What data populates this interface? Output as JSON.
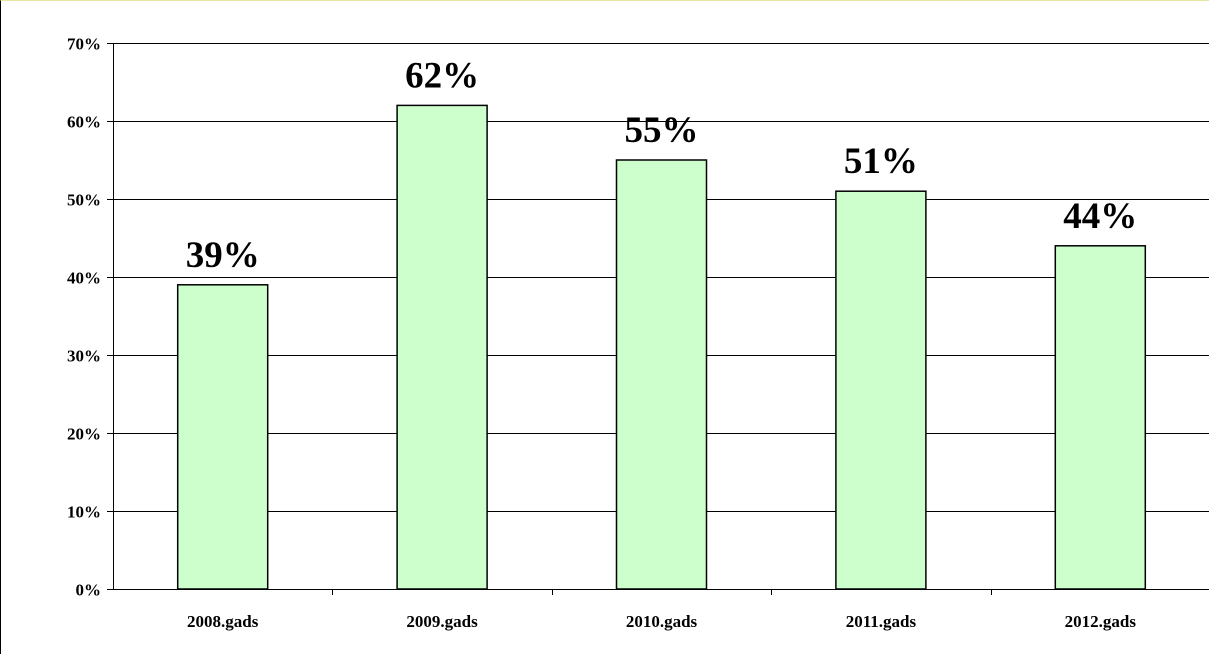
{
  "chart_data": {
    "type": "bar",
    "categories": [
      "2008.gads",
      "2009.gads",
      "2010.gads",
      "2011.gads",
      "2012.gads"
    ],
    "values": [
      39,
      62,
      55,
      51,
      44
    ],
    "data_labels": [
      "39%",
      "62%",
      "55%",
      "51%",
      "44%"
    ],
    "y_ticks": [
      0,
      10,
      20,
      30,
      40,
      50,
      60,
      70
    ],
    "y_tick_labels": [
      "0%",
      "10%",
      "20%",
      "30%",
      "40%",
      "50%",
      "60%",
      "70%"
    ],
    "ylim": [
      0,
      70
    ],
    "grid": true,
    "legend": "none",
    "colors": {
      "bar_fill": "#ccffcc",
      "bar_stroke": "#000000",
      "grid": "#000000",
      "background": "#ffffff"
    }
  }
}
